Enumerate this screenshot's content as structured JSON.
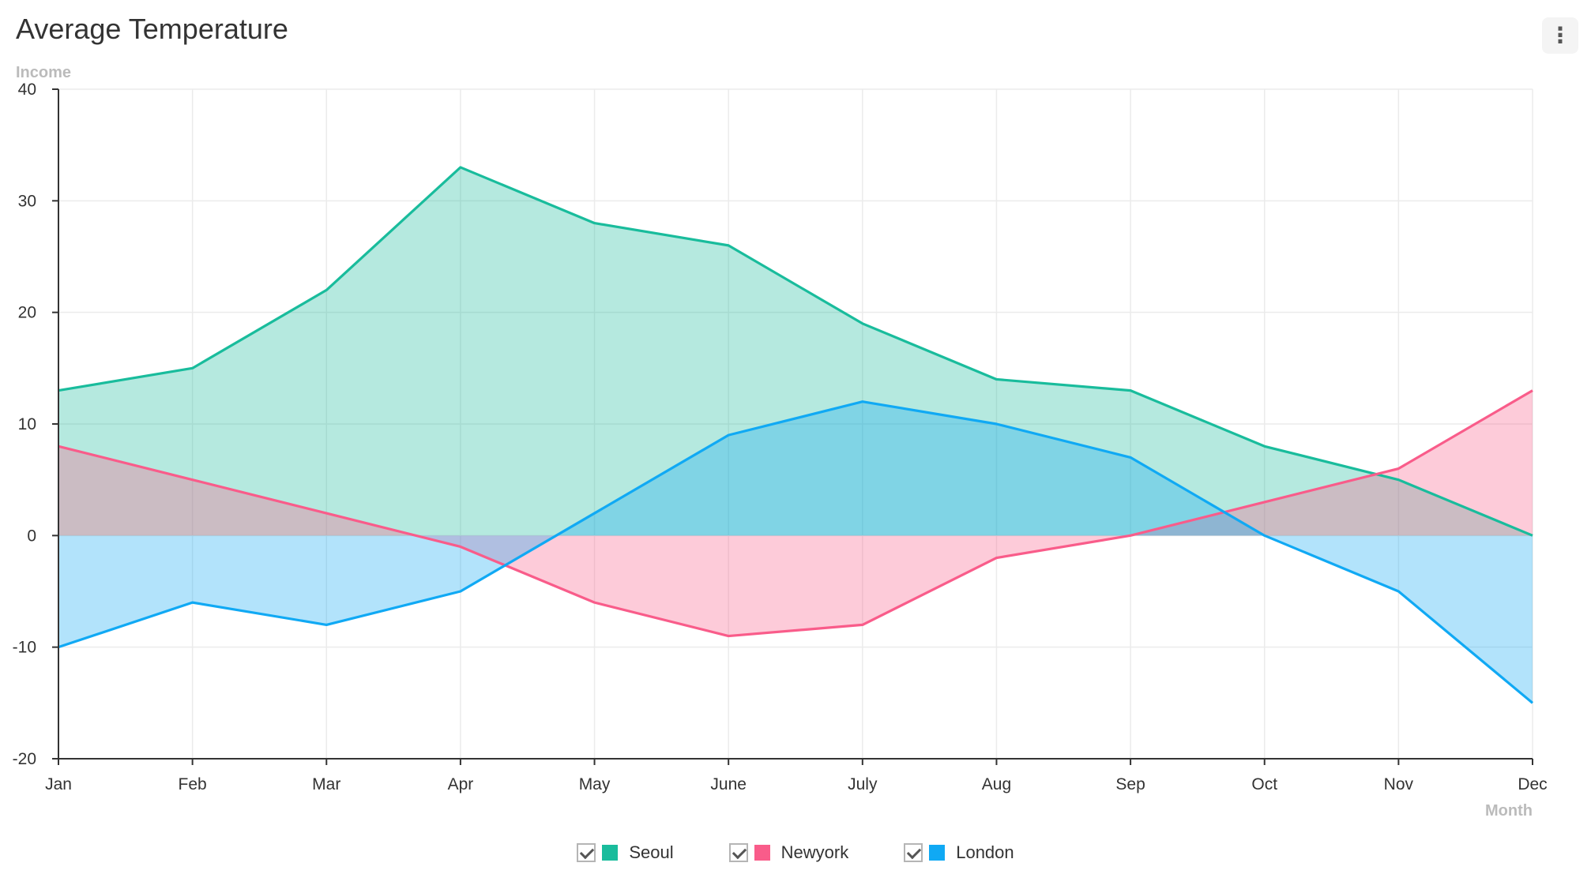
{
  "title": "Average Temperature",
  "menu_icon": "more-vertical-icon",
  "chart_data": {
    "type": "area",
    "title": "Average Temperature",
    "ylabel": "Income",
    "xlabel": "Month",
    "categories": [
      "Jan",
      "Feb",
      "Mar",
      "Apr",
      "May",
      "June",
      "July",
      "Aug",
      "Sep",
      "Oct",
      "Nov",
      "Dec"
    ],
    "ylim": [
      -20,
      40
    ],
    "yticks": [
      40,
      30,
      20,
      10,
      0,
      -10,
      -20
    ],
    "grid": true,
    "legend_position": "bottom",
    "series": [
      {
        "name": "Seoul",
        "color": "#19bc9c",
        "values": [
          13,
          15,
          22,
          33,
          28,
          26,
          19,
          14,
          13,
          8,
          5,
          0
        ]
      },
      {
        "name": "Newyork",
        "color": "#f95c8a",
        "values": [
          8,
          5,
          2,
          -1,
          -6,
          -9,
          -8,
          -2,
          0,
          3,
          6,
          13
        ]
      },
      {
        "name": "London",
        "color": "#10a9f4",
        "values": [
          -10,
          -6,
          -8,
          -5,
          2,
          9,
          12,
          10,
          7,
          0,
          -5,
          -15
        ]
      }
    ]
  }
}
